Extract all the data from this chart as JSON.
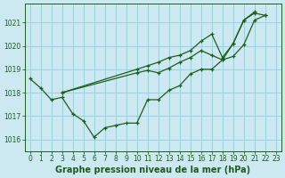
{
  "background_color": "#cce8f0",
  "grid_color": "#9ecfdc",
  "line_color": "#1e5c1e",
  "xlabel": "Graphe pression niveau de la mer (hPa)",
  "xlim": [
    -0.5,
    23.5
  ],
  "ylim": [
    1015.5,
    1021.8
  ],
  "yticks": [
    1016,
    1017,
    1018,
    1019,
    1020,
    1021
  ],
  "xticks": [
    0,
    1,
    2,
    3,
    4,
    5,
    6,
    7,
    8,
    9,
    10,
    11,
    12,
    13,
    14,
    15,
    16,
    17,
    18,
    19,
    20,
    21,
    22,
    23
  ],
  "series": [
    {
      "x": [
        0,
        1,
        2,
        3,
        4,
        5,
        6,
        7,
        8,
        9,
        10,
        11,
        12,
        13,
        14,
        15,
        16,
        17,
        18,
        19,
        20,
        21,
        22
      ],
      "y": [
        1018.6,
        1018.2,
        1017.7,
        1017.8,
        1017.1,
        1016.8,
        1016.1,
        1016.5,
        1016.6,
        1016.7,
        1016.7,
        1017.7,
        1017.7,
        1018.1,
        1018.3,
        1018.8,
        1019.0,
        1019.0,
        1019.4,
        1020.1,
        1021.1,
        1021.4,
        1021.3
      ]
    },
    {
      "x": [
        3,
        10,
        11,
        12,
        13,
        14,
        15,
        16,
        17,
        18,
        19,
        20,
        21
      ],
      "y": [
        1018.0,
        1019.0,
        1019.15,
        1019.3,
        1019.5,
        1019.6,
        1019.8,
        1020.2,
        1020.5,
        1019.5,
        1020.1,
        1021.1,
        1021.45
      ]
    },
    {
      "x": [
        3,
        10,
        11,
        12,
        13,
        14,
        15,
        16,
        17,
        18,
        19,
        20,
        21,
        22
      ],
      "y": [
        1018.0,
        1018.85,
        1018.95,
        1018.85,
        1019.05,
        1019.3,
        1019.5,
        1019.8,
        1019.6,
        1019.4,
        1019.55,
        1020.05,
        1021.1,
        1021.3
      ]
    }
  ],
  "xlabel_fontsize": 7,
  "tick_fontsize": 5.5
}
